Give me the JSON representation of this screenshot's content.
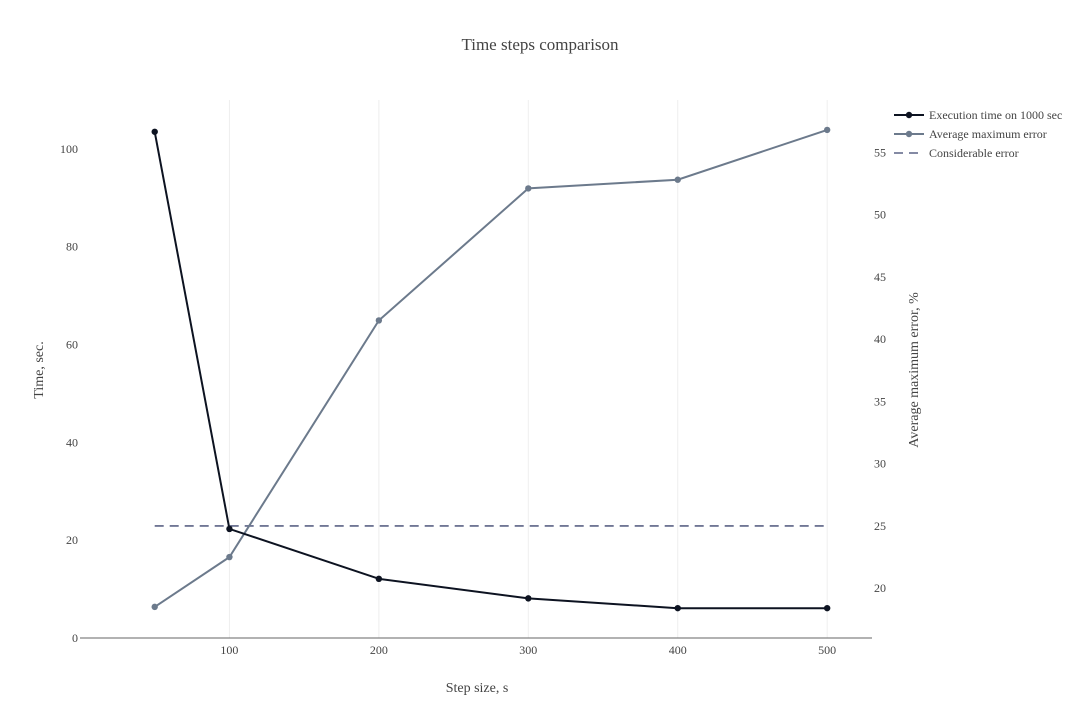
{
  "chart_data": {
    "type": "line",
    "title": "Time steps comparison",
    "xlabel": "Step size, s",
    "ylabel": "Time, sec.",
    "y2label": "Average maximum error, %",
    "x": [
      50,
      100,
      200,
      300,
      400,
      500
    ],
    "xlim": [
      0,
      530
    ],
    "ylim": [
      0,
      110
    ],
    "y2lim": [
      16.0,
      59.2
    ],
    "x_ticks": [
      100,
      200,
      300,
      400,
      500
    ],
    "y_ticks": [
      0,
      20,
      40,
      60,
      80,
      100
    ],
    "y2_ticks": [
      20,
      25,
      30,
      35,
      40,
      45,
      50,
      55
    ],
    "grid": "vertical",
    "legend_position": "top-right",
    "series": [
      {
        "name": "Execution time on 1000 sec",
        "axis": "y",
        "values": [
          103.5,
          22.3,
          12.1,
          8.1,
          6.1,
          6.1
        ],
        "color": "#0d1321",
        "style": "lines+markers"
      },
      {
        "name": "Average maximum error",
        "axis": "y2",
        "values": [
          18.5,
          22.5,
          41.5,
          52.1,
          52.8,
          56.8
        ],
        "color": "#6c7a8c",
        "style": "lines+markers"
      },
      {
        "name": "Considerable error",
        "axis": "y2",
        "values": [
          25,
          25,
          25,
          25,
          25,
          25
        ],
        "color": "#5c6385",
        "style": "dash"
      }
    ]
  }
}
